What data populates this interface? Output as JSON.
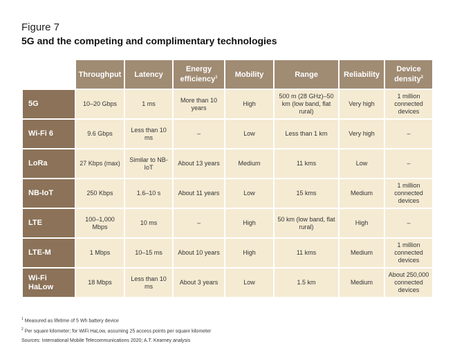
{
  "figure": {
    "label": "Figure 7",
    "title": "5G and the competing and complimentary technologies"
  },
  "table": {
    "headers": [
      "Throughput",
      "Latency",
      "Energy efficiency",
      "Mobility",
      "Range",
      "Reliability",
      "Device density"
    ],
    "header_footnote_marks": [
      "",
      "",
      "1",
      "",
      "",
      "",
      "2"
    ],
    "rows": [
      {
        "name": "5G",
        "cells": [
          "10–20 Gbps",
          "1 ms",
          "More than 10 years",
          "High",
          "500 m (28 GHz)–50 km (low band, flat rural)",
          "Very high",
          "1 million connected devices"
        ]
      },
      {
        "name": "Wi-Fi 6",
        "cells": [
          "9.6 Gbps",
          "Less than 10 ms",
          "–",
          "Low",
          "Less than 1 km",
          "Very high",
          "–"
        ]
      },
      {
        "name": "LoRa",
        "cells": [
          "27 Kbps (max)",
          "Similar to NB-IoT",
          "About 13 years",
          "Medium",
          "11 kms",
          "Low",
          "–"
        ]
      },
      {
        "name": "NB-IoT",
        "cells": [
          "250 Kbps",
          "1.6–10 s",
          "About 11 years",
          "Low",
          "15 kms",
          "Medium",
          "1 million connected devices"
        ]
      },
      {
        "name": "LTE",
        "cells": [
          "100–1,000 Mbps",
          "10 ms",
          "–",
          "High",
          "50 km (low band, flat rural)",
          "High",
          "–"
        ]
      },
      {
        "name": "LTE-M",
        "cells": [
          "1 Mbps",
          "10–15 ms",
          "About 10 years",
          "High",
          "11 kms",
          "Medium",
          "1 million connected devices"
        ]
      },
      {
        "name": "Wi-Fi HaLow",
        "cells": [
          "18 Mbps",
          "Less than 10 ms",
          "About 3 years",
          "Low",
          "1.5 km",
          "Medium",
          "About 250,000 connected devices"
        ]
      }
    ]
  },
  "notes": {
    "note1_mark": "1",
    "note1": "Measured as lifetime of 5 Wh battery device",
    "note2_mark": "2",
    "note2": "Per square kilometer; for WiFi HaLow, assuming 25 access points per square kilometer",
    "sources": "Sources: International Mobile Telecommunications 2020; A.T. Kearney analysis"
  },
  "colors": {
    "header_bg": "#a08b73",
    "row_header_bg": "#8b7258",
    "cell_bg": "#f5ebd3"
  }
}
